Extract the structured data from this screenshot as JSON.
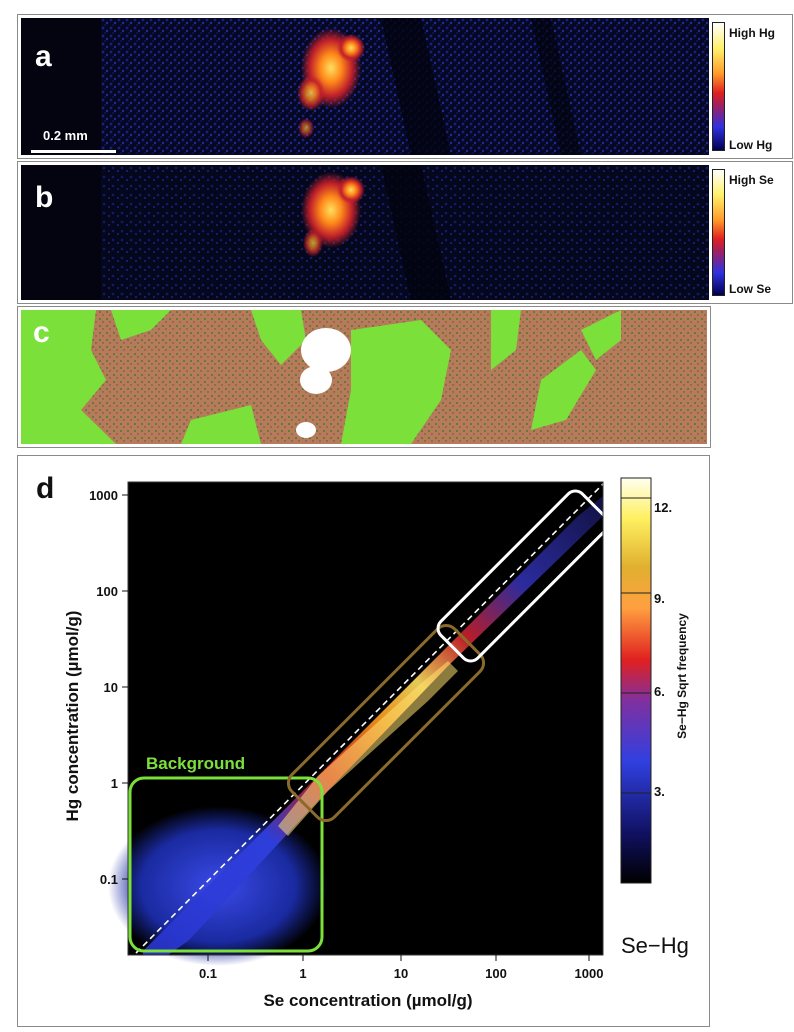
{
  "panels": {
    "a": {
      "label": "a",
      "scalebar": "0.2 mm",
      "colorbar_high": "High Hg",
      "colorbar_low": "Low Hg"
    },
    "b": {
      "label": "b",
      "colorbar_high": "High Se",
      "colorbar_low": "Low Se"
    },
    "c": {
      "label": "c"
    },
    "d": {
      "label": "d",
      "background_label": "Background",
      "colorbar_title": "Se−Hg   Sqrt  frequency",
      "corner_label": "Se−Hg"
    }
  },
  "colors": {
    "map_background": "#05061a",
    "hotspot": "#ffb020",
    "background_green": "#7be03a",
    "soil_brown": "#b57b5a",
    "white_box": "#ffffff",
    "brown_box": "#8a6a2a"
  },
  "chart_data": {
    "type": "heatmap",
    "xlabel": "Se concentration (µmol/g)",
    "ylabel": "Hg concentration (µmol/g)",
    "x_scale": "log",
    "y_scale": "log",
    "xlim": [
      0.015,
      1500
    ],
    "ylim": [
      0.015,
      1500
    ],
    "x_ticks": [
      "0.1",
      "1",
      "10",
      "100",
      "1000"
    ],
    "y_ticks": [
      "0.1",
      "1",
      "10",
      "100",
      "1000"
    ],
    "colorbar": {
      "ticks": [
        "3.",
        "6.",
        "9.",
        "12."
      ],
      "label": "Se−Hg   Sqrt  frequency"
    },
    "regions": [
      {
        "name": "Background",
        "color": "#7be03a",
        "x_range": [
          0.02,
          1.2
        ],
        "y_range": [
          0.02,
          1.0
        ]
      }
    ]
  }
}
